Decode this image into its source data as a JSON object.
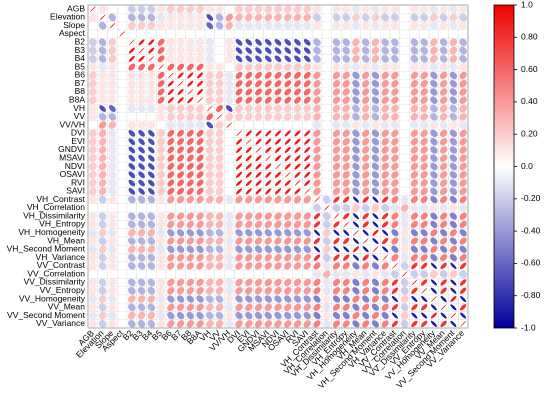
{
  "chart_data": {
    "type": "corrplot",
    "variables": [
      "AGB",
      "Elevation",
      "Slope",
      "Aspect",
      "B2",
      "B3",
      "B4",
      "B5",
      "B6",
      "B7",
      "B8",
      "B8A",
      "VH",
      "VV",
      "VV/VH",
      "DVI",
      "EVI",
      "GNDVI",
      "MSAVI",
      "NDVI",
      "OSAVI",
      "RVI",
      "SAVI",
      "VH_Contrast",
      "VH_Correlation",
      "VH_Dissimilarity",
      "VH_Entropy",
      "VH_Homogeneity",
      "VH_Mean",
      "VH_Second Moment",
      "VH_Variance",
      "VV_Contrast",
      "VV_Correlation",
      "VV_Dissimilarity",
      "VV_Entropy",
      "VV_Homogeneity",
      "VV_Mean",
      "VV_Second Moment",
      "VV_Variance"
    ],
    "matrix": [
      [
        1
      ],
      [
        0.1,
        1
      ],
      [
        0,
        -0.3,
        1
      ],
      [
        0,
        0,
        0,
        1
      ],
      [
        -0.2,
        -0.3,
        0.2,
        0,
        1
      ],
      [
        -0.2,
        -0.3,
        0.2,
        0,
        0.9,
        1
      ],
      [
        -0.2,
        -0.3,
        0.2,
        0,
        0.9,
        0.9,
        1
      ],
      [
        0.1,
        -0.1,
        0.1,
        0,
        0.6,
        0.6,
        0.6,
        1
      ],
      [
        0.2,
        0.1,
        0.1,
        0,
        0.1,
        0.1,
        0.1,
        0.6,
        1
      ],
      [
        0.2,
        0.1,
        0.1,
        0,
        0.1,
        0.1,
        0.1,
        0.6,
        0.9,
        1
      ],
      [
        0.2,
        0.1,
        0.1,
        0,
        0.1,
        0.1,
        0.1,
        0.6,
        0.9,
        0.9,
        1
      ],
      [
        0.2,
        0.1,
        0.1,
        0,
        0.1,
        0.1,
        0.1,
        0.6,
        0.9,
        0.9,
        0.9,
        1
      ],
      [
        0.1,
        -0.7,
        -0.6,
        0,
        -0.1,
        -0.1,
        -0.1,
        0.1,
        0.2,
        0.2,
        0.2,
        0.2,
        1
      ],
      [
        0.1,
        -0.3,
        -0.3,
        0,
        0,
        0,
        0,
        0.1,
        0.2,
        0.2,
        0.2,
        0.2,
        0.6,
        1
      ],
      [
        0,
        0.4,
        0.3,
        0,
        0.1,
        0.1,
        0.1,
        0,
        -0.1,
        -0.1,
        -0.1,
        -0.1,
        -0.7,
        0.2,
        1
      ],
      [
        0.2,
        0.3,
        -0.1,
        0,
        -0.7,
        -0.7,
        -0.7,
        0.2,
        0.6,
        0.6,
        0.6,
        0.6,
        0.2,
        0.2,
        0,
        1
      ],
      [
        0.2,
        0.3,
        -0.1,
        0,
        -0.7,
        -0.7,
        -0.7,
        0.2,
        0.6,
        0.6,
        0.6,
        0.6,
        0.2,
        0.2,
        0,
        0.9,
        1
      ],
      [
        0.2,
        0.3,
        -0.1,
        0,
        -0.7,
        -0.7,
        -0.7,
        0.2,
        0.6,
        0.6,
        0.6,
        0.6,
        0.2,
        0.2,
        0,
        0.9,
        0.9,
        1
      ],
      [
        0.2,
        0.3,
        -0.1,
        0,
        -0.7,
        -0.7,
        -0.7,
        0.2,
        0.6,
        0.6,
        0.6,
        0.6,
        0.2,
        0.2,
        0,
        0.9,
        0.9,
        0.9,
        1
      ],
      [
        0.2,
        0.3,
        -0.1,
        0,
        -0.7,
        -0.7,
        -0.7,
        0.2,
        0.6,
        0.6,
        0.6,
        0.6,
        0.2,
        0.2,
        0,
        0.9,
        0.9,
        0.9,
        0.9,
        1
      ],
      [
        0.2,
        0.3,
        -0.1,
        0,
        -0.7,
        -0.7,
        -0.7,
        0.2,
        0.6,
        0.6,
        0.6,
        0.6,
        0.2,
        0.2,
        0,
        0.9,
        0.9,
        0.9,
        0.9,
        0.9,
        1
      ],
      [
        0.2,
        0.3,
        -0.1,
        0,
        -0.7,
        -0.7,
        -0.7,
        0.2,
        0.6,
        0.6,
        0.6,
        0.6,
        0.2,
        0.2,
        0,
        0.9,
        0.9,
        0.9,
        0.9,
        0.9,
        0.9,
        1
      ],
      [
        0.2,
        0.3,
        -0.1,
        0,
        -0.7,
        -0.7,
        -0.7,
        0.2,
        0.6,
        0.6,
        0.6,
        0.6,
        0.2,
        0.2,
        0,
        0.9,
        0.9,
        0.9,
        0.9,
        0.9,
        0.9,
        0.9,
        1
      ],
      [
        0.1,
        -0.2,
        0.1,
        0,
        -0.3,
        -0.3,
        -0.3,
        0.1,
        0.4,
        0.4,
        0.4,
        0.4,
        0.3,
        0.3,
        -0.1,
        0.4,
        0.4,
        0.4,
        0.4,
        0.4,
        0.4,
        0.4,
        0.4,
        1
      ],
      [
        0,
        0,
        0,
        0,
        0,
        0,
        0,
        0,
        0,
        0,
        0,
        0,
        0,
        0,
        0,
        0,
        0,
        0,
        0,
        0,
        0,
        0,
        0,
        -0.2,
        1
      ],
      [
        0.1,
        -0.2,
        0.1,
        0,
        -0.3,
        -0.3,
        -0.3,
        0.1,
        0.4,
        0.4,
        0.4,
        0.4,
        0.3,
        0.3,
        -0.1,
        0.4,
        0.4,
        0.4,
        0.4,
        0.4,
        0.4,
        0.4,
        0.4,
        0.8,
        -0.2,
        1
      ],
      [
        0.1,
        -0.2,
        0.1,
        0,
        -0.3,
        -0.3,
        -0.3,
        0.1,
        0.4,
        0.4,
        0.4,
        0.4,
        0.3,
        0.3,
        -0.1,
        0.4,
        0.4,
        0.4,
        0.4,
        0.4,
        0.4,
        0.4,
        0.4,
        0.8,
        -0.2,
        0.8,
        1
      ],
      [
        -0.1,
        0.2,
        -0.1,
        0,
        0.3,
        0.3,
        0.3,
        -0.1,
        -0.4,
        -0.4,
        -0.4,
        -0.4,
        -0.3,
        -0.3,
        0.1,
        -0.4,
        -0.4,
        -0.4,
        -0.4,
        -0.4,
        -0.4,
        -0.4,
        -0.4,
        -0.9,
        0.2,
        -0.9,
        -0.9,
        1
      ],
      [
        0.1,
        -0.2,
        0.1,
        0,
        -0.3,
        -0.3,
        -0.3,
        0.1,
        0.4,
        0.4,
        0.4,
        0.4,
        0.3,
        0.3,
        -0.1,
        0.4,
        0.4,
        0.4,
        0.4,
        0.4,
        0.4,
        0.4,
        0.4,
        0.8,
        -0.2,
        0.8,
        0.8,
        -0.9,
        1
      ],
      [
        -0.1,
        0.2,
        -0.1,
        0,
        0.3,
        0.3,
        0.3,
        -0.1,
        -0.4,
        -0.4,
        -0.4,
        -0.4,
        -0.3,
        -0.3,
        0.1,
        -0.4,
        -0.4,
        -0.4,
        -0.4,
        -0.4,
        -0.4,
        -0.4,
        -0.4,
        -0.9,
        0.2,
        -0.9,
        -0.9,
        0.9,
        -0.9,
        1
      ],
      [
        0.1,
        -0.2,
        0.1,
        0,
        -0.3,
        -0.3,
        -0.3,
        0.1,
        0.4,
        0.4,
        0.4,
        0.4,
        0.3,
        0.3,
        -0.1,
        0.4,
        0.4,
        0.4,
        0.4,
        0.4,
        0.4,
        0.4,
        0.4,
        0.8,
        -0.2,
        0.8,
        0.8,
        -0.9,
        0.8,
        -0.9,
        1
      ],
      [
        0.1,
        -0.2,
        0.1,
        0,
        -0.3,
        -0.3,
        -0.3,
        0.1,
        0.4,
        0.4,
        0.4,
        0.4,
        0.3,
        0.3,
        -0.1,
        0.4,
        0.4,
        0.4,
        0.4,
        0.4,
        0.4,
        0.4,
        0.4,
        0.5,
        -0.1,
        0.5,
        0.5,
        -0.5,
        0.5,
        -0.5,
        0.5,
        1
      ],
      [
        0,
        0,
        0,
        0,
        0,
        0,
        0,
        0,
        0,
        0,
        0,
        0,
        0,
        0,
        0,
        0,
        0,
        0,
        0,
        0,
        0,
        0,
        0,
        -0.1,
        0.3,
        -0.1,
        -0.1,
        0.1,
        -0.1,
        0.1,
        -0.1,
        -0.2,
        1
      ],
      [
        0.1,
        -0.2,
        0.1,
        0,
        -0.3,
        -0.3,
        -0.3,
        0.1,
        0.4,
        0.4,
        0.4,
        0.4,
        0.3,
        0.3,
        -0.1,
        0.4,
        0.4,
        0.4,
        0.4,
        0.4,
        0.4,
        0.4,
        0.4,
        0.5,
        -0.1,
        0.5,
        0.5,
        -0.5,
        0.5,
        -0.5,
        0.5,
        0.8,
        -0.2,
        1
      ],
      [
        0.1,
        -0.2,
        0.1,
        0,
        -0.3,
        -0.3,
        -0.3,
        0.1,
        0.4,
        0.4,
        0.4,
        0.4,
        0.3,
        0.3,
        -0.1,
        0.4,
        0.4,
        0.4,
        0.4,
        0.4,
        0.4,
        0.4,
        0.4,
        0.5,
        -0.1,
        0.5,
        0.5,
        -0.5,
        0.5,
        -0.5,
        0.5,
        0.8,
        -0.2,
        0.8,
        1
      ],
      [
        -0.1,
        0.2,
        -0.1,
        0,
        0.3,
        0.3,
        0.3,
        -0.1,
        -0.4,
        -0.4,
        -0.4,
        -0.4,
        -0.3,
        -0.3,
        0.1,
        -0.4,
        -0.4,
        -0.4,
        -0.4,
        -0.4,
        -0.4,
        -0.4,
        -0.4,
        -0.5,
        0.1,
        -0.5,
        -0.5,
        0.5,
        -0.5,
        0.5,
        -0.5,
        -0.9,
        0.2,
        -0.9,
        -0.9,
        1
      ],
      [
        0.1,
        -0.2,
        0.1,
        0,
        -0.3,
        -0.3,
        -0.3,
        0.1,
        0.4,
        0.4,
        0.4,
        0.4,
        0.3,
        0.3,
        -0.1,
        0.4,
        0.4,
        0.4,
        0.4,
        0.4,
        0.4,
        0.4,
        0.4,
        0.5,
        -0.1,
        0.5,
        0.5,
        -0.5,
        0.5,
        -0.5,
        0.5,
        0.8,
        -0.2,
        0.8,
        0.8,
        -0.9,
        1
      ],
      [
        -0.1,
        0.2,
        -0.1,
        0,
        0.3,
        0.3,
        0.3,
        -0.1,
        -0.4,
        -0.4,
        -0.4,
        -0.4,
        -0.3,
        -0.3,
        0.1,
        -0.4,
        -0.4,
        -0.4,
        -0.4,
        -0.4,
        -0.4,
        -0.4,
        -0.4,
        -0.5,
        0.1,
        -0.5,
        -0.5,
        0.5,
        -0.5,
        0.5,
        -0.5,
        -0.9,
        0.2,
        -0.9,
        -0.9,
        0.9,
        -0.9,
        1
      ],
      [
        0.1,
        -0.2,
        0.1,
        0,
        -0.3,
        -0.3,
        -0.3,
        0.1,
        0.4,
        0.4,
        0.4,
        0.4,
        0.3,
        0.3,
        -0.1,
        0.4,
        0.4,
        0.4,
        0.4,
        0.4,
        0.4,
        0.4,
        0.4,
        0.5,
        -0.1,
        0.5,
        0.5,
        -0.5,
        0.5,
        -0.5,
        0.5,
        0.8,
        -0.2,
        0.8,
        0.8,
        -0.9,
        0.8,
        -0.9,
        1
      ]
    ],
    "clim": [
      -1,
      1
    ],
    "cticks": [
      {
        "value": 1,
        "label": "1.0"
      },
      {
        "value": 0.8,
        "label": "0.80"
      },
      {
        "value": 0.6,
        "label": "0.60"
      },
      {
        "value": 0.4,
        "label": "0.40"
      },
      {
        "value": 0.2,
        "label": "0.20"
      },
      {
        "value": 0,
        "label": "0.0"
      },
      {
        "value": -0.2,
        "label": "-0.20"
      },
      {
        "value": -0.4,
        "label": "-0.40"
      },
      {
        "value": -0.6,
        "label": "-0.60"
      },
      {
        "value": -0.8,
        "label": "-0.80"
      },
      {
        "value": -1,
        "label": "-1.0"
      }
    ],
    "colors": [
      "#00009c",
      "#ffffff",
      "#ee0000"
    ],
    "grid": true
  }
}
